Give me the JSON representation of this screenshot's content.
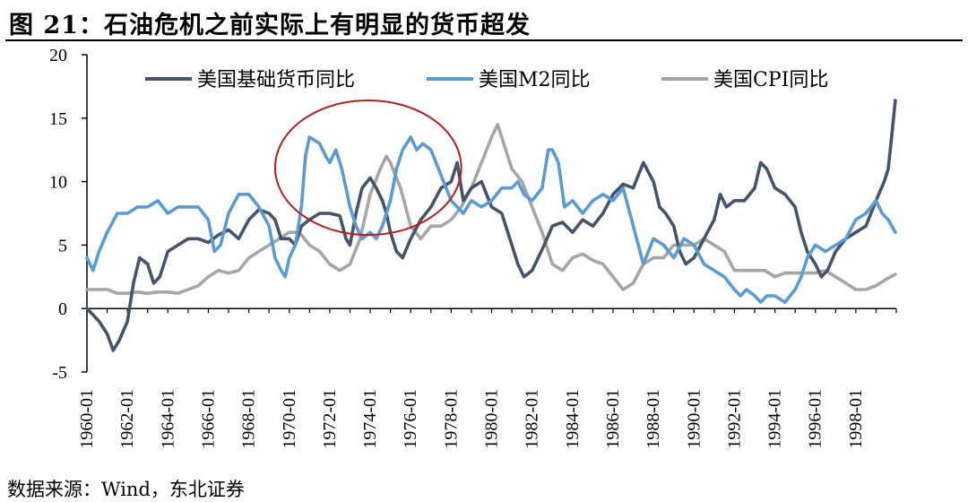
{
  "figure": {
    "title": "图 21：石油危机之前实际上有明显的货币超发",
    "source": "数据来源：Wind，东北证券"
  },
  "chart_data": {
    "type": "line",
    "x_range": [
      "1960-01",
      "1999-12"
    ],
    "x_tick_labels": [
      "1960-01",
      "1962-01",
      "1964-01",
      "1966-01",
      "1968-01",
      "1970-01",
      "1972-01",
      "1974-01",
      "1976-01",
      "1978-01",
      "1980-01",
      "1982-01",
      "1984-01",
      "1986-01",
      "1988-01",
      "1990-01",
      "1992-01",
      "1994-01",
      "1996-01",
      "1998-01"
    ],
    "ylim": [
      -5,
      20
    ],
    "y_ticks": [
      -5,
      0,
      5,
      10,
      15,
      20
    ],
    "legend_position": "top",
    "grid": false,
    "annotation": {
      "type": "ellipse",
      "color": "#B22222",
      "x_range": [
        1969.3,
        1978.5
      ],
      "y_range": [
        5.8,
        16.4
      ]
    },
    "series": [
      {
        "name": "美国基础货币同比",
        "color": "#44546A",
        "points": [
          [
            1960.0,
            0.0
          ],
          [
            1960.3,
            -0.5
          ],
          [
            1960.6,
            -1.0
          ],
          [
            1961.0,
            -2.0
          ],
          [
            1961.3,
            -3.3
          ],
          [
            1961.6,
            -2.5
          ],
          [
            1962.0,
            -1.0
          ],
          [
            1962.3,
            2.0
          ],
          [
            1962.6,
            4.0
          ],
          [
            1963.0,
            3.5
          ],
          [
            1963.3,
            2.0
          ],
          [
            1963.6,
            2.5
          ],
          [
            1964.0,
            4.5
          ],
          [
            1964.5,
            5.0
          ],
          [
            1965.0,
            5.5
          ],
          [
            1965.5,
            5.5
          ],
          [
            1966.0,
            5.2
          ],
          [
            1966.5,
            5.8
          ],
          [
            1967.0,
            6.2
          ],
          [
            1967.5,
            5.5
          ],
          [
            1968.0,
            7.0
          ],
          [
            1968.5,
            7.8
          ],
          [
            1969.0,
            7.5
          ],
          [
            1969.3,
            7.0
          ],
          [
            1969.6,
            5.5
          ],
          [
            1970.0,
            5.5
          ],
          [
            1970.3,
            5.0
          ],
          [
            1970.6,
            6.5
          ],
          [
            1971.0,
            7.0
          ],
          [
            1971.5,
            7.5
          ],
          [
            1972.0,
            7.5
          ],
          [
            1972.5,
            7.3
          ],
          [
            1972.8,
            5.5
          ],
          [
            1973.0,
            5.0
          ],
          [
            1973.3,
            7.5
          ],
          [
            1973.6,
            9.5
          ],
          [
            1974.0,
            10.3
          ],
          [
            1974.3,
            9.5
          ],
          [
            1974.6,
            8.5
          ],
          [
            1974.8,
            7.5
          ],
          [
            1975.0,
            6.0
          ],
          [
            1975.3,
            4.5
          ],
          [
            1975.6,
            4.0
          ],
          [
            1976.0,
            5.5
          ],
          [
            1976.5,
            7.0
          ],
          [
            1977.0,
            8.0
          ],
          [
            1977.5,
            9.5
          ],
          [
            1978.0,
            10.0
          ],
          [
            1978.3,
            11.5
          ],
          [
            1978.6,
            8.5
          ],
          [
            1979.0,
            9.5
          ],
          [
            1979.5,
            10.0
          ],
          [
            1980.0,
            8.0
          ],
          [
            1980.5,
            7.5
          ],
          [
            1981.0,
            5.0
          ],
          [
            1981.3,
            3.5
          ],
          [
            1981.6,
            2.5
          ],
          [
            1982.0,
            3.0
          ],
          [
            1982.3,
            4.0
          ],
          [
            1982.6,
            5.0
          ],
          [
            1983.0,
            6.5
          ],
          [
            1983.5,
            6.8
          ],
          [
            1984.0,
            6.0
          ],
          [
            1984.5,
            7.0
          ],
          [
            1985.0,
            6.5
          ],
          [
            1985.5,
            7.5
          ],
          [
            1986.0,
            9.0
          ],
          [
            1986.5,
            9.8
          ],
          [
            1987.0,
            9.5
          ],
          [
            1987.5,
            11.5
          ],
          [
            1988.0,
            10.0
          ],
          [
            1988.3,
            8.0
          ],
          [
            1988.6,
            7.5
          ],
          [
            1989.0,
            6.5
          ],
          [
            1989.3,
            4.5
          ],
          [
            1989.6,
            3.5
          ],
          [
            1990.0,
            4.0
          ],
          [
            1990.5,
            5.5
          ],
          [
            1991.0,
            7.0
          ],
          [
            1991.3,
            9.0
          ],
          [
            1991.6,
            8.0
          ],
          [
            1992.0,
            8.5
          ],
          [
            1992.5,
            8.5
          ],
          [
            1993.0,
            9.5
          ],
          [
            1993.3,
            11.5
          ],
          [
            1993.6,
            11.0
          ],
          [
            1994.0,
            9.5
          ],
          [
            1994.5,
            9.0
          ],
          [
            1995.0,
            8.0
          ],
          [
            1995.3,
            6.0
          ],
          [
            1995.6,
            4.5
          ],
          [
            1996.0,
            3.5
          ],
          [
            1996.3,
            2.5
          ],
          [
            1996.6,
            3.0
          ],
          [
            1997.0,
            4.5
          ],
          [
            1997.5,
            5.5
          ],
          [
            1998.0,
            6.0
          ],
          [
            1998.5,
            6.5
          ],
          [
            1999.0,
            8.5
          ],
          [
            1999.4,
            10.0
          ],
          [
            1999.6,
            11.0
          ],
          [
            1999.8,
            14.0
          ],
          [
            1999.95,
            16.4
          ]
        ]
      },
      {
        "name": "美国M2同比",
        "color": "#5B9BD5",
        "points": [
          [
            1960.0,
            4.0
          ],
          [
            1960.3,
            3.0
          ],
          [
            1960.6,
            4.5
          ],
          [
            1961.0,
            6.0
          ],
          [
            1961.5,
            7.5
          ],
          [
            1962.0,
            7.5
          ],
          [
            1962.5,
            8.0
          ],
          [
            1963.0,
            8.0
          ],
          [
            1963.5,
            8.5
          ],
          [
            1964.0,
            7.5
          ],
          [
            1964.5,
            8.0
          ],
          [
            1965.0,
            8.0
          ],
          [
            1965.5,
            8.0
          ],
          [
            1966.0,
            7.0
          ],
          [
            1966.3,
            4.5
          ],
          [
            1966.6,
            5.0
          ],
          [
            1967.0,
            7.5
          ],
          [
            1967.5,
            9.0
          ],
          [
            1968.0,
            9.0
          ],
          [
            1968.5,
            8.0
          ],
          [
            1969.0,
            6.5
          ],
          [
            1969.3,
            4.0
          ],
          [
            1969.6,
            3.0
          ],
          [
            1969.8,
            2.5
          ],
          [
            1970.0,
            4.0
          ],
          [
            1970.3,
            5.0
          ],
          [
            1970.6,
            8.0
          ],
          [
            1970.8,
            12.0
          ],
          [
            1971.0,
            13.5
          ],
          [
            1971.5,
            13.0
          ],
          [
            1971.8,
            12.0
          ],
          [
            1972.0,
            11.5
          ],
          [
            1972.3,
            12.5
          ],
          [
            1972.6,
            11.0
          ],
          [
            1973.0,
            8.0
          ],
          [
            1973.3,
            6.5
          ],
          [
            1973.6,
            5.5
          ],
          [
            1974.0,
            6.0
          ],
          [
            1974.3,
            5.5
          ],
          [
            1974.6,
            6.5
          ],
          [
            1975.0,
            8.5
          ],
          [
            1975.3,
            11.0
          ],
          [
            1975.6,
            12.5
          ],
          [
            1976.0,
            13.5
          ],
          [
            1976.3,
            12.5
          ],
          [
            1976.6,
            13.0
          ],
          [
            1977.0,
            12.5
          ],
          [
            1977.5,
            10.5
          ],
          [
            1978.0,
            8.5
          ],
          [
            1978.3,
            8.0
          ],
          [
            1978.6,
            7.5
          ],
          [
            1979.0,
            8.5
          ],
          [
            1979.5,
            8.0
          ],
          [
            1980.0,
            8.5
          ],
          [
            1980.5,
            9.5
          ],
          [
            1981.0,
            9.5
          ],
          [
            1981.3,
            10.0
          ],
          [
            1981.6,
            9.0
          ],
          [
            1982.0,
            8.5
          ],
          [
            1982.5,
            9.5
          ],
          [
            1982.8,
            12.5
          ],
          [
            1983.0,
            12.5
          ],
          [
            1983.3,
            11.5
          ],
          [
            1983.6,
            8.0
          ],
          [
            1984.0,
            8.5
          ],
          [
            1984.5,
            7.5
          ],
          [
            1985.0,
            8.5
          ],
          [
            1985.5,
            9.0
          ],
          [
            1986.0,
            8.5
          ],
          [
            1986.5,
            9.5
          ],
          [
            1987.0,
            6.5
          ],
          [
            1987.5,
            3.5
          ],
          [
            1988.0,
            5.5
          ],
          [
            1988.5,
            5.0
          ],
          [
            1989.0,
            4.0
          ],
          [
            1989.5,
            5.5
          ],
          [
            1990.0,
            5.0
          ],
          [
            1990.5,
            3.5
          ],
          [
            1991.0,
            3.0
          ],
          [
            1991.5,
            2.5
          ],
          [
            1992.0,
            1.5
          ],
          [
            1992.3,
            1.0
          ],
          [
            1992.6,
            1.5
          ],
          [
            1993.0,
            1.0
          ],
          [
            1993.3,
            0.5
          ],
          [
            1993.6,
            1.0
          ],
          [
            1994.0,
            1.0
          ],
          [
            1994.5,
            0.5
          ],
          [
            1995.0,
            1.5
          ],
          [
            1995.3,
            2.5
          ],
          [
            1995.6,
            4.0
          ],
          [
            1996.0,
            5.0
          ],
          [
            1996.5,
            4.5
          ],
          [
            1997.0,
            5.0
          ],
          [
            1997.5,
            5.5
          ],
          [
            1998.0,
            7.0
          ],
          [
            1998.5,
            7.5
          ],
          [
            1999.0,
            8.5
          ],
          [
            1999.3,
            7.5
          ],
          [
            1999.6,
            7.0
          ],
          [
            1999.95,
            6.0
          ]
        ]
      },
      {
        "name": "美国CPI同比",
        "color": "#A6A6A6",
        "points": [
          [
            1960.0,
            1.5
          ],
          [
            1960.5,
            1.5
          ],
          [
            1961.0,
            1.5
          ],
          [
            1961.5,
            1.2
          ],
          [
            1962.0,
            1.2
          ],
          [
            1962.5,
            1.3
          ],
          [
            1963.0,
            1.2
          ],
          [
            1963.5,
            1.3
          ],
          [
            1964.0,
            1.3
          ],
          [
            1964.5,
            1.2
          ],
          [
            1965.0,
            1.5
          ],
          [
            1965.5,
            1.8
          ],
          [
            1966.0,
            2.5
          ],
          [
            1966.5,
            3.0
          ],
          [
            1967.0,
            2.8
          ],
          [
            1967.5,
            3.0
          ],
          [
            1968.0,
            4.0
          ],
          [
            1968.5,
            4.5
          ],
          [
            1969.0,
            5.0
          ],
          [
            1969.5,
            5.5
          ],
          [
            1970.0,
            6.0
          ],
          [
            1970.5,
            6.0
          ],
          [
            1971.0,
            5.0
          ],
          [
            1971.5,
            4.5
          ],
          [
            1972.0,
            3.5
          ],
          [
            1972.5,
            3.0
          ],
          [
            1973.0,
            3.5
          ],
          [
            1973.5,
            5.5
          ],
          [
            1974.0,
            9.0
          ],
          [
            1974.5,
            11.0
          ],
          [
            1974.8,
            12.0
          ],
          [
            1975.0,
            11.5
          ],
          [
            1975.5,
            9.5
          ],
          [
            1976.0,
            6.5
          ],
          [
            1976.5,
            5.5
          ],
          [
            1977.0,
            6.5
          ],
          [
            1977.5,
            6.5
          ],
          [
            1978.0,
            7.0
          ],
          [
            1978.5,
            8.0
          ],
          [
            1979.0,
            9.5
          ],
          [
            1979.5,
            11.5
          ],
          [
            1980.0,
            13.5
          ],
          [
            1980.3,
            14.5
          ],
          [
            1980.6,
            13.0
          ],
          [
            1981.0,
            11.0
          ],
          [
            1981.5,
            10.0
          ],
          [
            1982.0,
            8.0
          ],
          [
            1982.5,
            6.0
          ],
          [
            1983.0,
            3.5
          ],
          [
            1983.5,
            3.0
          ],
          [
            1984.0,
            4.0
          ],
          [
            1984.5,
            4.3
          ],
          [
            1985.0,
            3.8
          ],
          [
            1985.5,
            3.5
          ],
          [
            1986.0,
            2.5
          ],
          [
            1986.5,
            1.5
          ],
          [
            1987.0,
            2.0
          ],
          [
            1987.5,
            3.5
          ],
          [
            1988.0,
            4.0
          ],
          [
            1988.5,
            4.0
          ],
          [
            1989.0,
            5.0
          ],
          [
            1989.5,
            5.0
          ],
          [
            1990.0,
            5.0
          ],
          [
            1990.5,
            5.5
          ],
          [
            1991.0,
            5.0
          ],
          [
            1991.5,
            4.5
          ],
          [
            1992.0,
            3.0
          ],
          [
            1992.5,
            3.0
          ],
          [
            1993.0,
            3.0
          ],
          [
            1993.5,
            3.0
          ],
          [
            1994.0,
            2.5
          ],
          [
            1994.5,
            2.8
          ],
          [
            1995.0,
            2.8
          ],
          [
            1995.5,
            2.8
          ],
          [
            1996.0,
            2.8
          ],
          [
            1996.5,
            3.0
          ],
          [
            1997.0,
            2.5
          ],
          [
            1997.5,
            2.0
          ],
          [
            1998.0,
            1.5
          ],
          [
            1998.5,
            1.5
          ],
          [
            1999.0,
            1.8
          ],
          [
            1999.5,
            2.3
          ],
          [
            1999.95,
            2.7
          ]
        ]
      }
    ]
  }
}
